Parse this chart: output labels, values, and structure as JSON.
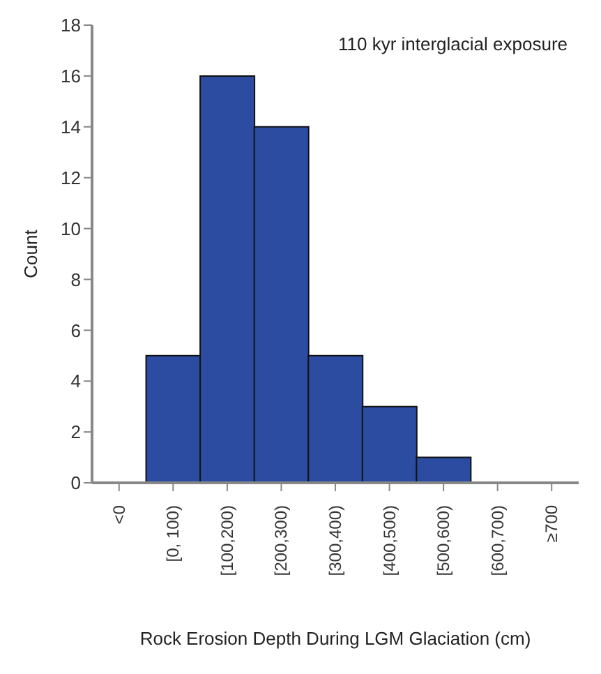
{
  "chart_data": {
    "type": "bar",
    "categories": [
      "<0",
      "[0, 100)",
      "[100,200)",
      "[200,300)",
      "[300,400)",
      "[400,500)",
      "[500,600)",
      "[600,700)",
      "≥700"
    ],
    "values": [
      0,
      5,
      16,
      14,
      5,
      3,
      1,
      0,
      0
    ],
    "color": "#2b4ca0",
    "ylim": [
      0,
      18
    ],
    "yticks": [
      0,
      2,
      4,
      6,
      8,
      10,
      12,
      14,
      16,
      18
    ],
    "xlabel": "Rock Erosion Depth During LGM Glaciation (cm)",
    "ylabel": "Count",
    "annotations": [
      "110 kyr interglacial exposure"
    ],
    "grid": false
  }
}
